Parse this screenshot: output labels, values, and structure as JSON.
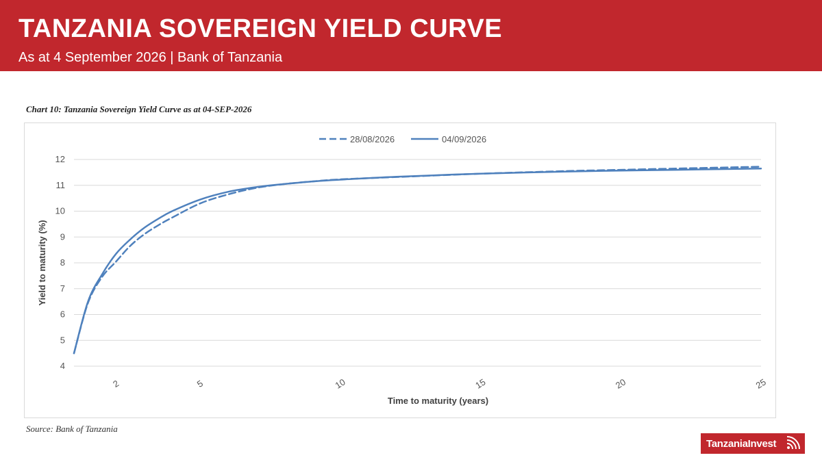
{
  "header": {
    "title": "TANZANIA SOVEREIGN YIELD CURVE",
    "subtitle": "As at 4 September 2026  |  Bank of Tanzania"
  },
  "chart_caption": "Chart 10: Tanzania Sovereign Yield Curve as at 04-SEP-2026",
  "source": "Source: Bank of Tanzania",
  "brand": {
    "name": "TanzaniaInvest",
    "icon": "wifi-signal-icon",
    "color": "#c1272d"
  },
  "chart_data": {
    "type": "line",
    "xlabel": "Time to maturity (years)",
    "ylabel": "Yield to maturity (%)",
    "ylim": [
      4,
      12
    ],
    "yticks": [
      4,
      5,
      6,
      7,
      8,
      9,
      10,
      11,
      12
    ],
    "xlim": [
      0.5,
      25
    ],
    "xticks": [
      "2",
      "5",
      "10",
      "15",
      "20",
      "25"
    ],
    "grid": true,
    "legend_position": "top-center",
    "series": [
      {
        "name": "28/08/2026",
        "style": "dashed",
        "color": "#4f81bd",
        "x": [
          0.5,
          1,
          1.5,
          2,
          2.5,
          3,
          3.5,
          4,
          5,
          6,
          7,
          8,
          9,
          10,
          12,
          15,
          18,
          20,
          22,
          25
        ],
        "y": [
          4.5,
          6.45,
          7.45,
          8.05,
          8.65,
          9.1,
          9.45,
          9.75,
          10.3,
          10.65,
          10.9,
          11.05,
          11.15,
          11.23,
          11.32,
          11.45,
          11.55,
          11.6,
          11.65,
          11.72
        ]
      },
      {
        "name": "04/09/2026",
        "style": "solid",
        "color": "#4f81bd",
        "x": [
          0.5,
          1,
          1.5,
          2,
          2.5,
          3,
          3.5,
          4,
          5,
          6,
          7,
          8,
          9,
          10,
          12,
          15,
          18,
          20,
          22,
          25
        ],
        "y": [
          4.5,
          6.5,
          7.55,
          8.35,
          8.9,
          9.35,
          9.7,
          10.0,
          10.45,
          10.75,
          10.93,
          11.05,
          11.15,
          11.22,
          11.33,
          11.45,
          11.53,
          11.57,
          11.6,
          11.65
        ]
      }
    ]
  }
}
